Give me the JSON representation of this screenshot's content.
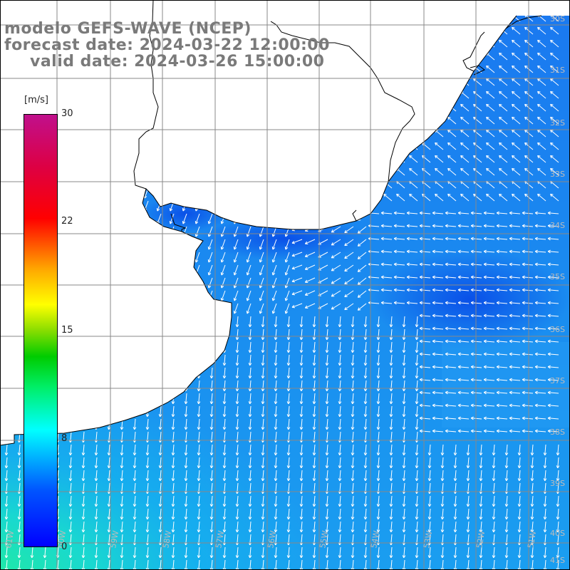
{
  "title": {
    "line1": "modelo GEFS-WAVE (NCEP)",
    "line2": "forecast date: 2024-03-22 12:00:00",
    "line3": "valid date: 2024-03-26 15:00:00"
  },
  "colorbar": {
    "unit": "[m/s]",
    "ticks": [
      "30",
      "22",
      "15",
      "8",
      "0"
    ],
    "tick_values": [
      30,
      22,
      15,
      8,
      0
    ],
    "range": [
      0,
      30
    ]
  },
  "map": {
    "land_color": "#ffffff",
    "coast_color": "#000000",
    "grid_color": "#888888",
    "arrow_color": "#ffffff",
    "lon_labels": [
      "61W",
      "60W",
      "59W",
      "58W",
      "57W",
      "56W",
      "55W",
      "54W",
      "53W",
      "52W",
      "51W"
    ],
    "lat_labels": [
      "30S",
      "31S",
      "32S",
      "33S",
      "34S",
      "35S",
      "36S",
      "37S",
      "38S",
      "39S",
      "40S",
      "41S"
    ]
  }
}
